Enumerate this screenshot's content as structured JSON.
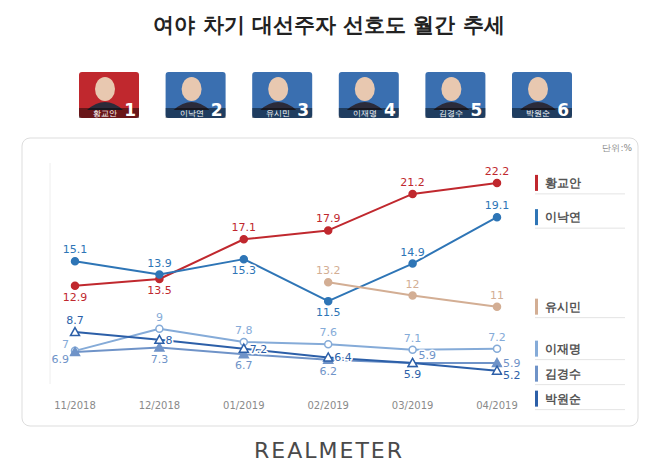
{
  "header": {
    "candidates": [
      {
        "name": "황교안",
        "rank": 1,
        "color": "#c0282e"
      },
      {
        "name": "이낙연",
        "rank": 2,
        "color": "#3a6fb0"
      },
      {
        "name": "유시민",
        "rank": 3,
        "color": "#3a6fb0"
      },
      {
        "name": "이재명",
        "rank": 4,
        "color": "#3a6fb0"
      },
      {
        "name": "김경수",
        "rank": 5,
        "color": "#3a6fb0"
      },
      {
        "name": "박원순",
        "rank": 6,
        "color": "#3a6fb0"
      }
    ]
  },
  "chart_data": {
    "type": "line",
    "title": "여야 차기 대선주자 선호도 월간 추세",
    "subtitle": "단위:%",
    "categories": [
      "11/2018",
      "12/2018",
      "01/2019",
      "02/2019",
      "03/2019",
      "04/2019"
    ],
    "series": [
      {
        "name": "황교안",
        "color": "#c0282e",
        "marker": "circle",
        "values": [
          12.9,
          13.5,
          17.1,
          17.9,
          21.2,
          22.2
        ]
      },
      {
        "name": "이낙연",
        "color": "#2e75b6",
        "marker": "circle",
        "values": [
          15.1,
          13.9,
          15.3,
          11.5,
          14.9,
          19.1
        ]
      },
      {
        "name": "유시민",
        "color": "#d3ae94",
        "marker": "circle",
        "values": [
          null,
          null,
          null,
          13.2,
          12.0,
          11.0
        ]
      },
      {
        "name": "이재명",
        "color": "#85abd8",
        "marker": "open-circle",
        "values": [
          7.0,
          9.0,
          7.8,
          7.6,
          7.1,
          7.2
        ]
      },
      {
        "name": "김경수",
        "color": "#6f93c8",
        "marker": "triangle",
        "values": [
          6.9,
          7.3,
          6.7,
          6.2,
          5.9,
          5.9
        ]
      },
      {
        "name": "박원순",
        "color": "#2c5fa8",
        "marker": "open-triangle",
        "values": [
          8.7,
          8.0,
          7.2,
          6.4,
          5.9,
          5.2
        ]
      }
    ],
    "ylim": [
      4,
      24
    ],
    "yticks": [],
    "grid": false,
    "legend": "right",
    "data_labels": true,
    "tick_labels": "x"
  },
  "footer": {
    "logo": "REALMETER"
  }
}
